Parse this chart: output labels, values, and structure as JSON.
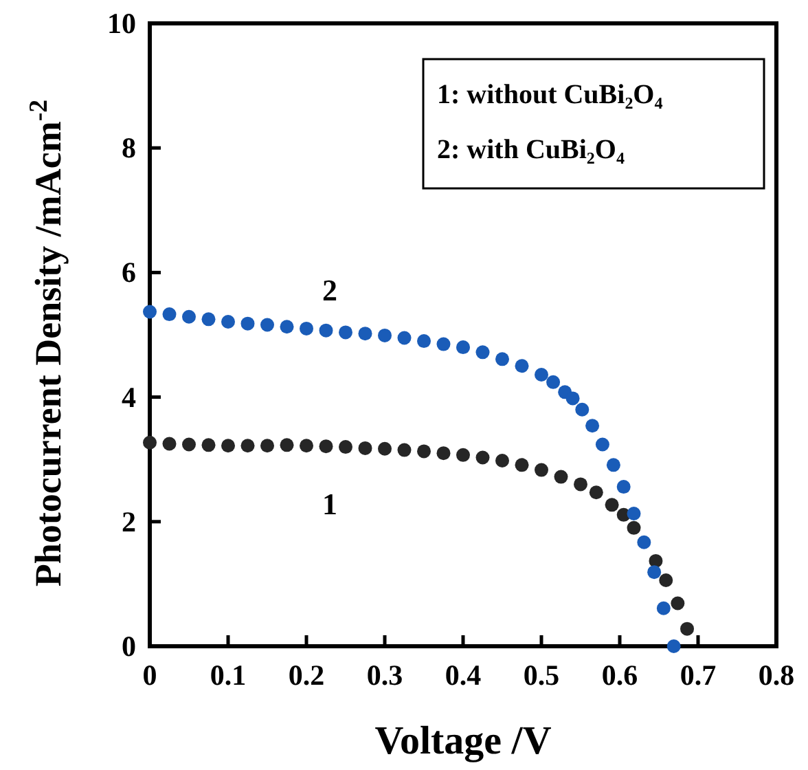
{
  "chart_data": {
    "type": "scatter",
    "xlabel": "Voltage /V",
    "ylabel": "Photocurrent Density /mAcm$^{-2}$",
    "xlim": [
      0,
      0.8
    ],
    "ylim": [
      0,
      10
    ],
    "xticks": [
      0,
      0.1,
      0.2,
      0.3,
      0.4,
      0.5,
      0.6,
      0.7,
      0.8
    ],
    "yticks": [
      0,
      2,
      4,
      6,
      8,
      10
    ],
    "marker": "circle",
    "annotations": [
      "1:    without CuBi₂O₄",
      "2:    with CuBi₂O₄"
    ],
    "series": [
      {
        "name": "1",
        "color": "#262626",
        "x": [
          0,
          0.025,
          0.05,
          0.075,
          0.1,
          0.125,
          0.15,
          0.175,
          0.2,
          0.225,
          0.25,
          0.275,
          0.3,
          0.325,
          0.35,
          0.375,
          0.4,
          0.425,
          0.45,
          0.475,
          0.5,
          0.525,
          0.55,
          0.57,
          0.59,
          0.605,
          0.618,
          0.646,
          0.659,
          0.674,
          0.686
        ],
        "values": [
          3.27,
          3.25,
          3.24,
          3.23,
          3.22,
          3.22,
          3.22,
          3.23,
          3.22,
          3.21,
          3.2,
          3.18,
          3.17,
          3.15,
          3.13,
          3.1,
          3.07,
          3.03,
          2.98,
          2.91,
          2.83,
          2.72,
          2.6,
          2.47,
          2.27,
          2.11,
          1.9,
          1.37,
          1.06,
          0.69,
          0.28
        ]
      },
      {
        "name": "2",
        "color": "#1a5cb8",
        "x": [
          0,
          0.025,
          0.05,
          0.075,
          0.1,
          0.125,
          0.15,
          0.175,
          0.2,
          0.225,
          0.25,
          0.275,
          0.3,
          0.325,
          0.35,
          0.375,
          0.4,
          0.425,
          0.45,
          0.475,
          0.5,
          0.515,
          0.53,
          0.54,
          0.552,
          0.565,
          0.578,
          0.592,
          0.605,
          0.618,
          0.631,
          0.644,
          0.656,
          0.669
        ],
        "values": [
          5.37,
          5.33,
          5.29,
          5.25,
          5.21,
          5.18,
          5.16,
          5.13,
          5.1,
          5.07,
          5.04,
          5.02,
          4.99,
          4.95,
          4.9,
          4.85,
          4.8,
          4.72,
          4.61,
          4.5,
          4.36,
          4.24,
          4.08,
          3.98,
          3.8,
          3.54,
          3.24,
          2.91,
          2.56,
          2.13,
          1.67,
          1.19,
          0.61,
          0
        ]
      }
    ]
  }
}
